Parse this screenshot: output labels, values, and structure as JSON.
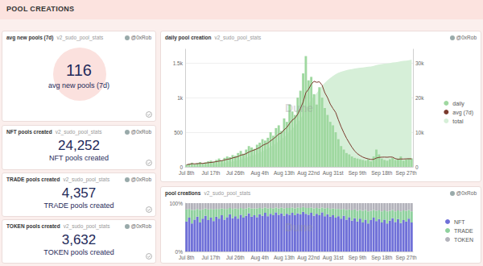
{
  "header": {
    "title": "POOL CREATIONS"
  },
  "cards": [
    {
      "title": "avg new pools (7d)",
      "source": "v2_sudo_pool_stats",
      "author": "@0xRob",
      "value": "116",
      "label": "avg new pools (7d)"
    },
    {
      "title": "NFT pools created",
      "source": "v2_sudo_pool_stats",
      "author": "@0xRob",
      "value": "24,252",
      "label": "NFT pools created"
    },
    {
      "title": "TRADE pools created",
      "source": "v2_sudo_pool_stats",
      "author": "@0xRob",
      "value": "4,357",
      "label": "TRADE pools created"
    },
    {
      "title": "TOKEN pools created",
      "source": "v2_sudo_pool_stats",
      "author": "@0xRob",
      "value": "3,632",
      "label": "TOKEN pools created"
    }
  ],
  "chart_data": [
    {
      "type": "bar",
      "title": "daily pool creation",
      "source": "v2_sudo_pool_stats",
      "author": "@0xRob",
      "watermark": "Dune",
      "categories": [
        "Jul 8th",
        null,
        null,
        null,
        null,
        null,
        null,
        null,
        null,
        "Jul 17th",
        null,
        null,
        null,
        null,
        null,
        null,
        null,
        null,
        "Jul 26th",
        null,
        null,
        null,
        null,
        null,
        null,
        null,
        null,
        "Aug 4th",
        null,
        null,
        null,
        null,
        null,
        null,
        null,
        null,
        "Aug 13th",
        null,
        null,
        null,
        null,
        null,
        null,
        null,
        null,
        "Aug 22nd",
        null,
        null,
        null,
        null,
        null,
        null,
        null,
        null,
        "Aug 31st",
        null,
        null,
        null,
        null,
        null,
        null,
        null,
        null,
        "Sep 9th",
        null,
        null,
        null,
        null,
        null,
        null,
        null,
        null,
        "Sep 18th",
        null,
        null,
        null,
        null,
        null,
        null,
        null,
        null,
        "Sep 27th",
        null,
        null
      ],
      "series": [
        {
          "name": "daily",
          "type": "bar",
          "color": "#9fd8a0",
          "values": [
            30,
            45,
            60,
            40,
            55,
            70,
            50,
            65,
            80,
            90,
            75,
            100,
            120,
            95,
            130,
            150,
            140,
            170,
            160,
            200,
            230,
            190,
            250,
            300,
            280,
            260,
            320,
            350,
            400,
            380,
            420,
            500,
            450,
            560,
            600,
            520,
            700,
            650,
            900,
            800,
            750,
            1000,
            1100,
            1350,
            1600,
            1250,
            1300,
            1050,
            900,
            1150,
            1000,
            850,
            750,
            650,
            600,
            500,
            400,
            300,
            250,
            200,
            180,
            150,
            130,
            120,
            110,
            100,
            90,
            110,
            80,
            150,
            250,
            180,
            120,
            100,
            90,
            110,
            130,
            100,
            120,
            150,
            90,
            110,
            120,
            122
          ]
        },
        {
          "name": "avg (7d)",
          "type": "line",
          "color": "#7a3b2e",
          "values": [
            30,
            38,
            45,
            44,
            46,
            50,
            50,
            55,
            60,
            64,
            69,
            76,
            83,
            89,
            99,
            109,
            116,
            129,
            138,
            149,
            169,
            177,
            191,
            214,
            230,
            244,
            261,
            279,
            309,
            327,
            344,
            376,
            403,
            437,
            473,
            490,
            536,
            569,
            626,
            676,
            703,
            760,
            843,
            936,
            1071,
            1121,
            1193,
            1236,
            1221,
            1229,
            1179,
            1071,
            1000,
            907,
            843,
            786,
            679,
            579,
            493,
            414,
            347,
            283,
            230,
            190,
            163,
            141,
            126,
            116,
            106,
            109,
            127,
            137,
            140,
            141,
            139,
            143,
            140,
            119,
            110,
            114,
            113,
            116,
            117,
            116
          ]
        },
        {
          "name": "total",
          "type": "area",
          "color": "#d6efd8",
          "axis": "y2",
          "values": [
            30,
            75,
            135,
            175,
            230,
            300,
            350,
            415,
            495,
            585,
            660,
            760,
            880,
            975,
            1105,
            1255,
            1395,
            1565,
            1725,
            1925,
            2155,
            2345,
            2595,
            2895,
            3175,
            3435,
            3755,
            4105,
            4505,
            4885,
            5305,
            5805,
            6255,
            6815,
            7415,
            7935,
            8635,
            9285,
            10185,
            10985,
            11735,
            12735,
            13835,
            15185,
            16785,
            18035,
            19335,
            20385,
            21285,
            22435,
            23435,
            24285,
            25035,
            25685,
            26285,
            26785,
            27185,
            27485,
            27735,
            27935,
            28115,
            28265,
            28395,
            28515,
            28625,
            28725,
            28815,
            28925,
            29005,
            29155,
            29405,
            29585,
            29705,
            29805,
            29895,
            30005,
            30135,
            30235,
            30355,
            30505,
            30595,
            30705,
            30825,
            30947
          ]
        }
      ],
      "ylim": [
        0,
        1700
      ],
      "yticks": [
        0,
        500,
        {
          "value": 1000,
          "label": "1k"
        },
        {
          "value": 1500,
          "label": "1.5k"
        }
      ],
      "y2lim": [
        0,
        34000
      ],
      "y2ticks": [
        0,
        {
          "value": 10000,
          "label": "10k"
        },
        {
          "value": 20000,
          "label": "20k"
        },
        {
          "value": 30000,
          "label": "30k"
        }
      ],
      "grid": true,
      "legend": "right"
    },
    {
      "type": "bar",
      "title": "pool creations",
      "source": "v2_sudo_pool_stats",
      "author": "@0xRob",
      "watermark": "Dune",
      "stacked": true,
      "categories": [
        "Jul 8th",
        null,
        null,
        null,
        null,
        null,
        null,
        null,
        null,
        "Jul 17th",
        null,
        null,
        null,
        null,
        null,
        null,
        null,
        null,
        "Jul 26th",
        null,
        null,
        null,
        null,
        null,
        null,
        null,
        null,
        "Aug 4th",
        null,
        null,
        null,
        null,
        null,
        null,
        null,
        null,
        "Aug 13th",
        null,
        null,
        null,
        null,
        null,
        null,
        null,
        null,
        "Aug 22nd",
        null,
        null,
        null,
        null,
        null,
        null,
        null,
        null,
        "Aug 31st",
        null,
        null,
        null,
        null,
        null,
        null,
        null,
        null,
        "Sep 9th",
        null,
        null,
        null,
        null,
        null,
        null,
        null,
        null,
        "Sep 18th",
        null,
        null,
        null,
        null,
        null,
        null,
        null,
        null,
        "Sep 27th",
        null,
        null
      ],
      "series": [
        {
          "name": "NFT",
          "color": "#6f70d8",
          "values": [
            62,
            70,
            58,
            66,
            72,
            60,
            68,
            74,
            65,
            70,
            63,
            72,
            68,
            75,
            66,
            71,
            77,
            69,
            73,
            68,
            76,
            70,
            74,
            79,
            72,
            75,
            71,
            77,
            74,
            80,
            73,
            78,
            75,
            81,
            76,
            79,
            74,
            78,
            76,
            80,
            75,
            79,
            77,
            82,
            78,
            76,
            80,
            74,
            78,
            75,
            81,
            73,
            77,
            72,
            75,
            70,
            73,
            68,
            74,
            66,
            71,
            64,
            69,
            62,
            68,
            60,
            66,
            58,
            65,
            70,
            63,
            67,
            60,
            66,
            58,
            64,
            69,
            61,
            67,
            59,
            65,
            62,
            68,
            60
          ]
        },
        {
          "name": "TRADE",
          "color": "#8fd19e",
          "values": [
            25,
            18,
            28,
            20,
            16,
            26,
            19,
            15,
            22,
            18,
            24,
            16,
            20,
            14,
            22,
            17,
            13,
            19,
            16,
            20,
            14,
            18,
            15,
            12,
            17,
            14,
            18,
            13,
            15,
            11,
            16,
            12,
            14,
            10,
            13,
            12,
            15,
            12,
            14,
            11,
            14,
            12,
            13,
            10,
            12,
            14,
            11,
            15,
            12,
            14,
            10,
            16,
            13,
            16,
            14,
            18,
            15,
            19,
            14,
            20,
            16,
            21,
            18,
            22,
            18,
            24,
            20,
            25,
            19,
            16,
            21,
            18,
            23,
            19,
            25,
            20,
            17,
            22,
            18,
            24,
            20,
            22,
            18,
            23
          ]
        },
        {
          "name": "TOKEN",
          "color": "#b3b3bb",
          "values": [
            13,
            12,
            14,
            14,
            12,
            14,
            13,
            11,
            13,
            12,
            13,
            12,
            12,
            11,
            12,
            12,
            10,
            12,
            11,
            12,
            10,
            12,
            11,
            9,
            11,
            11,
            11,
            10,
            11,
            9,
            11,
            10,
            11,
            9,
            11,
            9,
            11,
            10,
            10,
            9,
            11,
            9,
            10,
            8,
            10,
            10,
            9,
            11,
            10,
            11,
            9,
            11,
            10,
            12,
            11,
            12,
            12,
            13,
            12,
            14,
            13,
            15,
            13,
            16,
            14,
            16,
            14,
            17,
            16,
            14,
            16,
            15,
            17,
            15,
            17,
            16,
            14,
            17,
            15,
            17,
            15,
            16,
            14,
            17
          ]
        }
      ],
      "ylim": [
        0,
        100
      ],
      "yticks": [
        {
          "value": 0,
          "label": "0%"
        },
        {
          "value": 100,
          "label": "100%"
        }
      ],
      "grid": false,
      "legend": "right"
    }
  ]
}
